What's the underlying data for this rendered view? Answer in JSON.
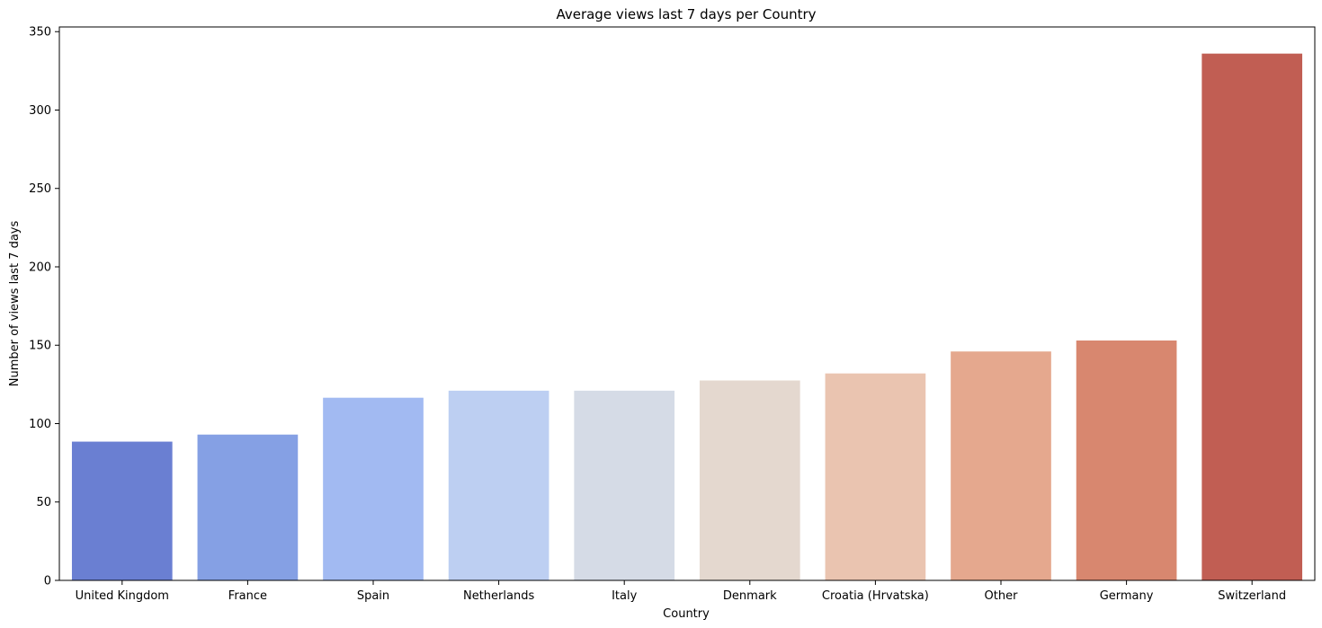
{
  "chart_data": {
    "type": "bar",
    "title": "Average views last 7 days per Country",
    "xlabel": "Country",
    "ylabel": "Number of views last 7 days",
    "categories": [
      "United Kingdom",
      "France",
      "Spain",
      "Netherlands",
      "Italy",
      "Denmark",
      "Croatia (Hrvatska)",
      "Other",
      "Germany",
      "Switzerland"
    ],
    "values": [
      88.5,
      93,
      116.5,
      121,
      121,
      127.5,
      132,
      146,
      153,
      336
    ],
    "ylim": [
      0,
      353
    ],
    "yticks": [
      0,
      50,
      100,
      150,
      200,
      250,
      300,
      350
    ],
    "colors": [
      "#6a7fd2",
      "#85a0e4",
      "#a2baf2",
      "#bdcff2",
      "#d5dbe6",
      "#e4d8cf",
      "#eac4b0",
      "#e5a88e",
      "#d8876f",
      "#c15e53"
    ],
    "grid": false,
    "legend": "none"
  }
}
